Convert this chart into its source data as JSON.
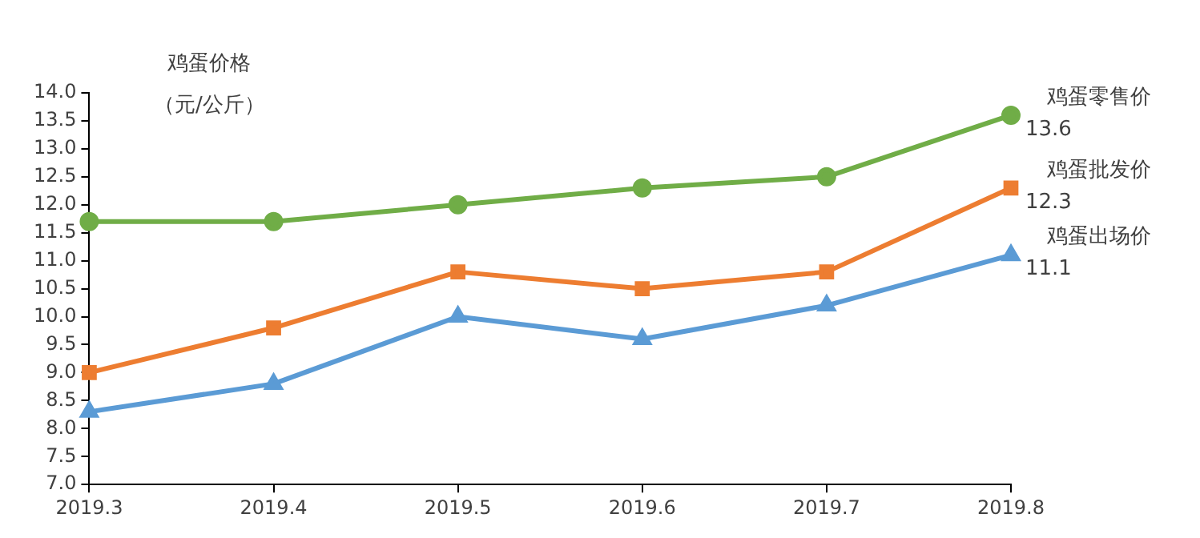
{
  "chart_data": {
    "type": "line",
    "ylabel": "鸡蛋价格（元/公斤）",
    "categories": [
      "2019.3",
      "2019.4",
      "2019.5",
      "2019.6",
      "2019.7",
      "2019.8"
    ],
    "series": [
      {
        "name": "鸡蛋零售价",
        "color": "#70ad47",
        "marker": "circle",
        "values": [
          11.7,
          11.7,
          12.0,
          12.3,
          12.5,
          13.6
        ],
        "value_labels": [
          null,
          null,
          null,
          null,
          null,
          "13.6"
        ]
      },
      {
        "name": "鸡蛋批发价",
        "color": "#ed7d31",
        "marker": "square",
        "values": [
          9.0,
          9.8,
          10.8,
          10.5,
          10.8,
          12.3
        ],
        "value_labels": [
          null,
          null,
          null,
          null,
          null,
          "12.3"
        ]
      },
      {
        "name": "鸡蛋出场价",
        "color": "#5b9bd5",
        "marker": "triangle",
        "values": [
          8.3,
          8.8,
          10.0,
          9.6,
          10.2,
          11.1
        ],
        "value_labels": [
          null,
          null,
          null,
          null,
          null,
          "11.1"
        ]
      }
    ],
    "ylim": [
      7,
      14
    ],
    "yticks": [
      {
        "value": 7,
        "label": "7.0"
      },
      {
        "value": 7.5,
        "label": "7.5"
      },
      {
        "value": 8,
        "label": "8.0"
      },
      {
        "value": 8.5,
        "label": "8.5"
      },
      {
        "value": 9,
        "label": "9.0"
      },
      {
        "value": 9.5,
        "label": "9.5"
      },
      {
        "value": 10,
        "label": "10.0"
      },
      {
        "value": 10.5,
        "label": "10.5"
      },
      {
        "value": 11,
        "label": "11.0"
      },
      {
        "value": 11.5,
        "label": "11.5"
      },
      {
        "value": 12,
        "label": "12.0"
      },
      {
        "value": 12.5,
        "label": "12.5"
      },
      {
        "value": 13,
        "label": "13.0"
      },
      {
        "value": 13.5,
        "label": "13.5"
      },
      {
        "value": 14,
        "label": "14.0"
      }
    ],
    "grid": false,
    "legend": false,
    "line_style": "solid"
  }
}
